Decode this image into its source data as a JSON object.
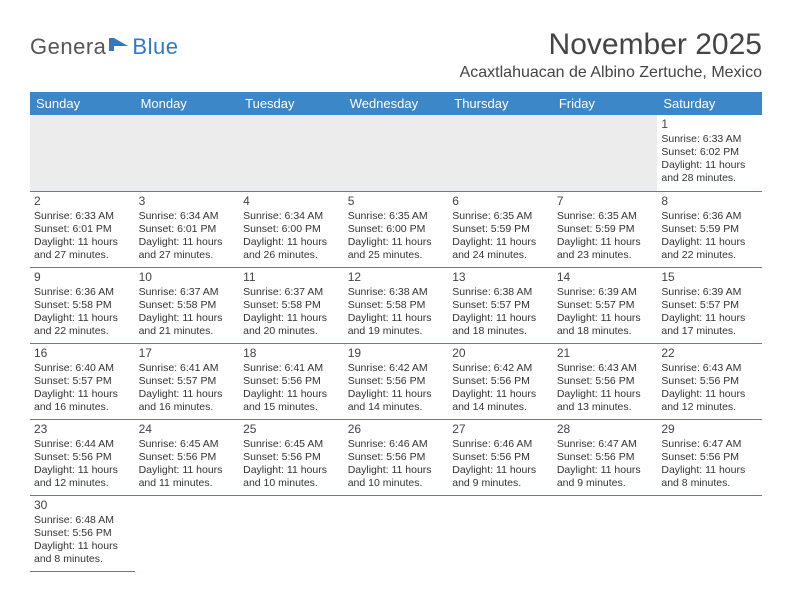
{
  "logo": {
    "dark": "Genera",
    "blue": "Blue"
  },
  "title": "November 2025",
  "location": "Acaxtlahuacan de Albino Zertuche, Mexico",
  "days": [
    "Sunday",
    "Monday",
    "Tuesday",
    "Wednesday",
    "Thursday",
    "Friday",
    "Saturday"
  ],
  "colors": {
    "header_bg": "#3b87c8",
    "header_text": "#ffffff",
    "rule": "#3b87c8",
    "blank_bg": "#ececec",
    "logo_blue": "#2f7ac0",
    "text": "#333333"
  },
  "weeks": [
    [
      null,
      null,
      null,
      null,
      null,
      null,
      {
        "n": "1",
        "sr": "Sunrise: 6:33 AM",
        "ss": "Sunset: 6:02 PM",
        "d1": "Daylight: 11 hours",
        "d2": "and 28 minutes."
      }
    ],
    [
      {
        "n": "2",
        "sr": "Sunrise: 6:33 AM",
        "ss": "Sunset: 6:01 PM",
        "d1": "Daylight: 11 hours",
        "d2": "and 27 minutes."
      },
      {
        "n": "3",
        "sr": "Sunrise: 6:34 AM",
        "ss": "Sunset: 6:01 PM",
        "d1": "Daylight: 11 hours",
        "d2": "and 27 minutes."
      },
      {
        "n": "4",
        "sr": "Sunrise: 6:34 AM",
        "ss": "Sunset: 6:00 PM",
        "d1": "Daylight: 11 hours",
        "d2": "and 26 minutes."
      },
      {
        "n": "5",
        "sr": "Sunrise: 6:35 AM",
        "ss": "Sunset: 6:00 PM",
        "d1": "Daylight: 11 hours",
        "d2": "and 25 minutes."
      },
      {
        "n": "6",
        "sr": "Sunrise: 6:35 AM",
        "ss": "Sunset: 5:59 PM",
        "d1": "Daylight: 11 hours",
        "d2": "and 24 minutes."
      },
      {
        "n": "7",
        "sr": "Sunrise: 6:35 AM",
        "ss": "Sunset: 5:59 PM",
        "d1": "Daylight: 11 hours",
        "d2": "and 23 minutes."
      },
      {
        "n": "8",
        "sr": "Sunrise: 6:36 AM",
        "ss": "Sunset: 5:59 PM",
        "d1": "Daylight: 11 hours",
        "d2": "and 22 minutes."
      }
    ],
    [
      {
        "n": "9",
        "sr": "Sunrise: 6:36 AM",
        "ss": "Sunset: 5:58 PM",
        "d1": "Daylight: 11 hours",
        "d2": "and 22 minutes."
      },
      {
        "n": "10",
        "sr": "Sunrise: 6:37 AM",
        "ss": "Sunset: 5:58 PM",
        "d1": "Daylight: 11 hours",
        "d2": "and 21 minutes."
      },
      {
        "n": "11",
        "sr": "Sunrise: 6:37 AM",
        "ss": "Sunset: 5:58 PM",
        "d1": "Daylight: 11 hours",
        "d2": "and 20 minutes."
      },
      {
        "n": "12",
        "sr": "Sunrise: 6:38 AM",
        "ss": "Sunset: 5:58 PM",
        "d1": "Daylight: 11 hours",
        "d2": "and 19 minutes."
      },
      {
        "n": "13",
        "sr": "Sunrise: 6:38 AM",
        "ss": "Sunset: 5:57 PM",
        "d1": "Daylight: 11 hours",
        "d2": "and 18 minutes."
      },
      {
        "n": "14",
        "sr": "Sunrise: 6:39 AM",
        "ss": "Sunset: 5:57 PM",
        "d1": "Daylight: 11 hours",
        "d2": "and 18 minutes."
      },
      {
        "n": "15",
        "sr": "Sunrise: 6:39 AM",
        "ss": "Sunset: 5:57 PM",
        "d1": "Daylight: 11 hours",
        "d2": "and 17 minutes."
      }
    ],
    [
      {
        "n": "16",
        "sr": "Sunrise: 6:40 AM",
        "ss": "Sunset: 5:57 PM",
        "d1": "Daylight: 11 hours",
        "d2": "and 16 minutes."
      },
      {
        "n": "17",
        "sr": "Sunrise: 6:41 AM",
        "ss": "Sunset: 5:57 PM",
        "d1": "Daylight: 11 hours",
        "d2": "and 16 minutes."
      },
      {
        "n": "18",
        "sr": "Sunrise: 6:41 AM",
        "ss": "Sunset: 5:56 PM",
        "d1": "Daylight: 11 hours",
        "d2": "and 15 minutes."
      },
      {
        "n": "19",
        "sr": "Sunrise: 6:42 AM",
        "ss": "Sunset: 5:56 PM",
        "d1": "Daylight: 11 hours",
        "d2": "and 14 minutes."
      },
      {
        "n": "20",
        "sr": "Sunrise: 6:42 AM",
        "ss": "Sunset: 5:56 PM",
        "d1": "Daylight: 11 hours",
        "d2": "and 14 minutes."
      },
      {
        "n": "21",
        "sr": "Sunrise: 6:43 AM",
        "ss": "Sunset: 5:56 PM",
        "d1": "Daylight: 11 hours",
        "d2": "and 13 minutes."
      },
      {
        "n": "22",
        "sr": "Sunrise: 6:43 AM",
        "ss": "Sunset: 5:56 PM",
        "d1": "Daylight: 11 hours",
        "d2": "and 12 minutes."
      }
    ],
    [
      {
        "n": "23",
        "sr": "Sunrise: 6:44 AM",
        "ss": "Sunset: 5:56 PM",
        "d1": "Daylight: 11 hours",
        "d2": "and 12 minutes."
      },
      {
        "n": "24",
        "sr": "Sunrise: 6:45 AM",
        "ss": "Sunset: 5:56 PM",
        "d1": "Daylight: 11 hours",
        "d2": "and 11 minutes."
      },
      {
        "n": "25",
        "sr": "Sunrise: 6:45 AM",
        "ss": "Sunset: 5:56 PM",
        "d1": "Daylight: 11 hours",
        "d2": "and 10 minutes."
      },
      {
        "n": "26",
        "sr": "Sunrise: 6:46 AM",
        "ss": "Sunset: 5:56 PM",
        "d1": "Daylight: 11 hours",
        "d2": "and 10 minutes."
      },
      {
        "n": "27",
        "sr": "Sunrise: 6:46 AM",
        "ss": "Sunset: 5:56 PM",
        "d1": "Daylight: 11 hours",
        "d2": "and 9 minutes."
      },
      {
        "n": "28",
        "sr": "Sunrise: 6:47 AM",
        "ss": "Sunset: 5:56 PM",
        "d1": "Daylight: 11 hours",
        "d2": "and 9 minutes."
      },
      {
        "n": "29",
        "sr": "Sunrise: 6:47 AM",
        "ss": "Sunset: 5:56 PM",
        "d1": "Daylight: 11 hours",
        "d2": "and 8 minutes."
      }
    ],
    [
      {
        "n": "30",
        "sr": "Sunrise: 6:48 AM",
        "ss": "Sunset: 5:56 PM",
        "d1": "Daylight: 11 hours",
        "d2": "and 8 minutes."
      },
      null,
      null,
      null,
      null,
      null,
      null
    ]
  ]
}
